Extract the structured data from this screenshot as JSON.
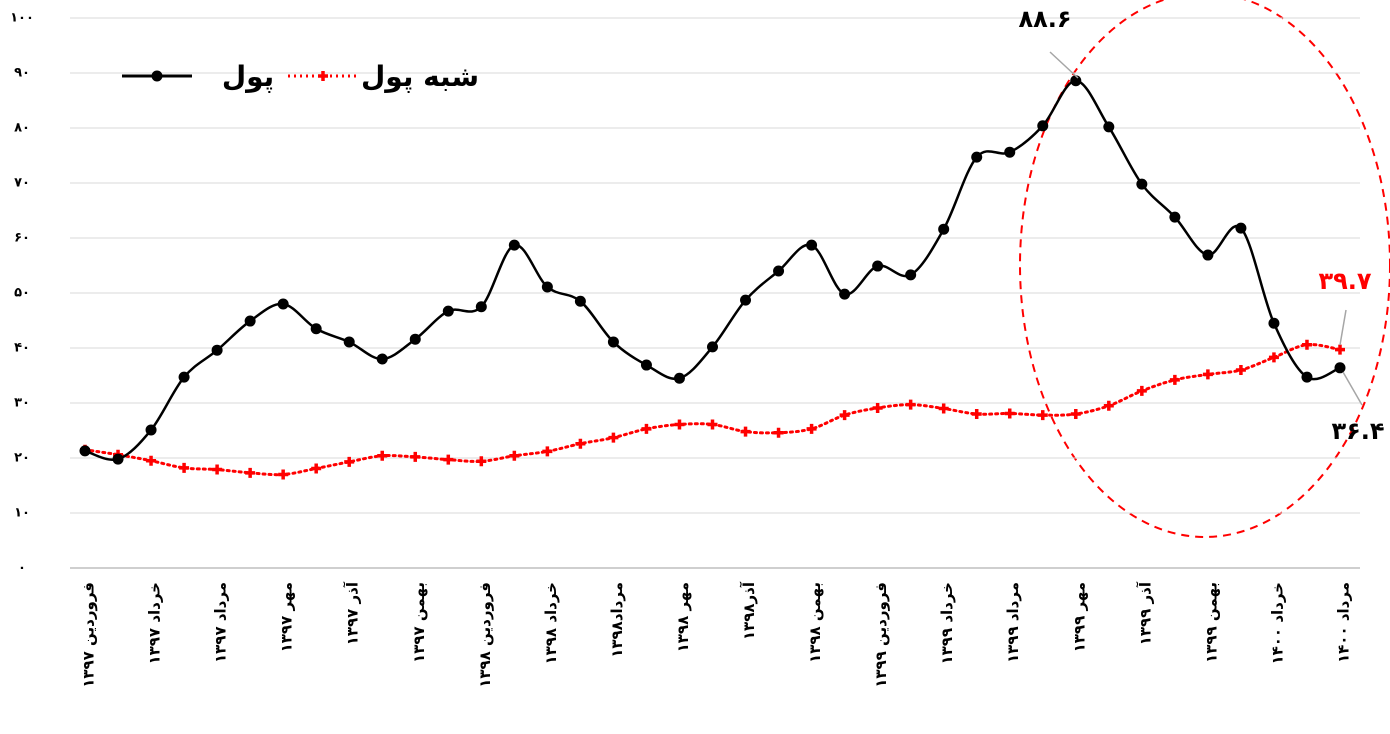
{
  "chart_data": {
    "type": "line",
    "categories": [
      "فروردین ۱۳۹۷",
      null,
      "خرداد ۱۳۹۷",
      null,
      "مرداد ۱۳۹۷",
      null,
      "مهر ۱۳۹۷",
      null,
      "آذر ۱۳۹۷",
      null,
      "بهمن ۱۳۹۷",
      null,
      "فروردین ۱۳۹۸",
      null,
      "خرداد ۱۳۹۸",
      null,
      "مرداد۱۳۹۸",
      null,
      "مهر ۱۳۹۸",
      null,
      "آذر۱۳۹۸",
      null,
      "بهمن ۱۳۹۸",
      null,
      "فروردین ۱۳۹۹",
      null,
      "خرداد ۱۳۹۹",
      null,
      "مرداد ۱۳۹۹",
      null,
      "مهر ۱۳۹۹",
      null,
      "آذر ۱۳۹۹",
      null,
      "بهمن ۱۳۹۹",
      null,
      "خرداد ۱۴۰۰",
      null,
      "مرداد ۱۴۰۰"
    ],
    "series": [
      {
        "name": "پول",
        "color": "#000000",
        "values": [
          21.3,
          19.8,
          25.1,
          34.7,
          39.6,
          44.9,
          48.0,
          43.5,
          41.1,
          38.0,
          41.6,
          46.7,
          47.5,
          58.7,
          51.1,
          48.5,
          41.1,
          36.9,
          34.5,
          40.2,
          48.7,
          54.0,
          58.7,
          49.8,
          54.9,
          53.3,
          61.6,
          74.7,
          75.6,
          80.4,
          88.6,
          80.2,
          69.8,
          63.8,
          56.9,
          61.8,
          44.5,
          34.7,
          36.4
        ],
        "value_labels": [
          null,
          null,
          null,
          null,
          null,
          null,
          null,
          null,
          null,
          null,
          null,
          null,
          null,
          null,
          null,
          null,
          null,
          null,
          null,
          null,
          null,
          null,
          null,
          null,
          null,
          null,
          null,
          null,
          null,
          null,
          "۸۸.۶",
          null,
          null,
          null,
          null,
          null,
          null,
          null,
          "۳۶.۴"
        ]
      },
      {
        "name": "شبه پول",
        "color": "#ff0000",
        "values": [
          21.5,
          20.6,
          19.5,
          18.2,
          17.9,
          17.3,
          17.0,
          18.1,
          19.3,
          20.4,
          20.2,
          19.7,
          19.4,
          20.4,
          21.2,
          22.6,
          23.7,
          25.3,
          26.1,
          26.1,
          24.8,
          24.6,
          25.3,
          27.8,
          29.1,
          29.7,
          29.0,
          28.0,
          28.1,
          27.8,
          28.0,
          29.5,
          32.2,
          34.2,
          35.2,
          36.0,
          38.3,
          40.6,
          39.7
        ],
        "value_labels": [
          null,
          null,
          null,
          null,
          null,
          null,
          null,
          null,
          null,
          null,
          null,
          null,
          null,
          null,
          null,
          null,
          null,
          null,
          null,
          null,
          null,
          null,
          null,
          null,
          null,
          null,
          null,
          null,
          null,
          null,
          null,
          null,
          null,
          null,
          null,
          null,
          null,
          null,
          "۳۹.۷"
        ]
      }
    ],
    "ylim": [
      0,
      100
    ],
    "yticks": [
      {
        "value": 0,
        "label": "۰"
      },
      {
        "value": 10,
        "label": "۱۰"
      },
      {
        "value": 20,
        "label": "۲۰"
      },
      {
        "value": 30,
        "label": "۳۰"
      },
      {
        "value": 40,
        "label": "۴۰"
      },
      {
        "value": 50,
        "label": "۵۰"
      },
      {
        "value": 60,
        "label": "۶۰"
      },
      {
        "value": 70,
        "label": "۷۰"
      },
      {
        "value": 80,
        "label": "۸۰"
      },
      {
        "value": 90,
        "label": "۹۰"
      },
      {
        "value": 100,
        "label": "۱۰۰"
      }
    ],
    "grid": true,
    "legend": "top-left"
  }
}
